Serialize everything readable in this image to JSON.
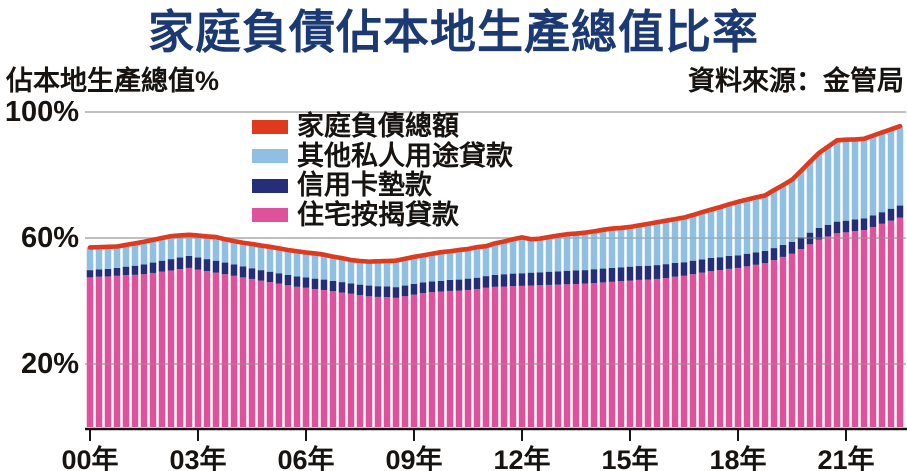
{
  "title": "家庭負債佔本地生產總值比率",
  "header": {
    "left_label": "佔本地生產總值%",
    "right_label": "資料來源：金管局"
  },
  "legend": [
    {
      "label": "家庭負債總額",
      "color": "#dd3a1e"
    },
    {
      "label": "其他私人用途貸款",
      "color": "#8fc0e4"
    },
    {
      "label": "信用卡墊款",
      "color": "#252f78"
    },
    {
      "label": "住宅按揭貸款",
      "color": "#e0519c"
    }
  ],
  "chart_data": {
    "type": "bar",
    "stacked": true,
    "title": "家庭負債佔本地生產總值比率",
    "ylabel": "佔本地生產總值%",
    "source": "資料來源：金管局",
    "x_start": "2000Q1",
    "x_frequency": "quarterly",
    "x_tick_labels": [
      "00年",
      "03年",
      "06年",
      "09年",
      "12年",
      "15年",
      "18年",
      "21年"
    ],
    "x_tick_interval_quarters": 12,
    "ylim": [
      0,
      100
    ],
    "y_axis_labels": [
      {
        "text": "100%",
        "value": 100
      },
      {
        "text": "60%",
        "value": 60
      },
      {
        "text": "20%",
        "value": 20
      }
    ],
    "grid": true,
    "legend_position": "top-center-inside",
    "series": [
      {
        "name": "住宅按揭貸款",
        "type": "bar",
        "color": "#e0519c",
        "values": [
          47.5,
          47.7,
          47.8,
          48.0,
          48.2,
          48.3,
          48.5,
          48.9,
          49.3,
          49.7,
          50.1,
          50.5,
          50.0,
          49.5,
          49.0,
          48.5,
          48.0,
          47.5,
          47.0,
          46.5,
          46.0,
          45.5,
          45.0,
          44.5,
          44.2,
          43.8,
          43.5,
          43.1,
          42.7,
          42.3,
          41.9,
          41.5,
          41.3,
          41.2,
          41.0,
          41.5,
          42.0,
          42.5,
          42.8,
          43.0,
          43.2,
          43.3,
          43.5,
          43.8,
          44.2,
          44.5,
          44.6,
          44.7,
          44.8,
          44.9,
          45.0,
          45.1,
          45.2,
          45.3,
          45.4,
          45.5,
          45.7,
          45.9,
          46.1,
          46.3,
          46.5,
          46.7,
          46.8,
          47.0,
          47.3,
          47.7,
          48.0,
          48.5,
          49.0,
          49.5,
          49.8,
          50.2,
          50.5,
          51.0,
          51.5,
          52.0,
          53.0,
          54.0,
          55.0,
          56.5,
          58.0,
          59.5,
          60.5,
          61.5,
          61.8,
          62.2,
          62.5,
          63.5,
          64.5,
          65.5,
          66.5
        ]
      },
      {
        "name": "信用卡墊款",
        "type": "bar",
        "color": "#252f78",
        "values": [
          2.3,
          2.3,
          2.4,
          2.5,
          2.7,
          2.9,
          3.1,
          3.3,
          3.5,
          3.6,
          3.7,
          3.8,
          3.8,
          3.8,
          3.8,
          3.7,
          3.6,
          3.5,
          3.4,
          3.3,
          3.3,
          3.3,
          3.3,
          3.3,
          3.3,
          3.3,
          3.3,
          3.3,
          3.3,
          3.3,
          3.3,
          3.4,
          3.4,
          3.4,
          3.4,
          3.4,
          3.4,
          3.4,
          3.4,
          3.4,
          3.5,
          3.5,
          3.6,
          3.6,
          3.7,
          3.8,
          3.9,
          4.0,
          4.0,
          4.1,
          4.1,
          4.2,
          4.2,
          4.3,
          4.3,
          4.3,
          4.4,
          4.4,
          4.4,
          4.4,
          4.4,
          4.4,
          4.4,
          4.4,
          4.4,
          4.4,
          4.3,
          4.3,
          4.2,
          4.2,
          4.1,
          4.1,
          4.0,
          4.0,
          3.9,
          3.9,
          3.8,
          3.8,
          3.8,
          3.7,
          3.7,
          3.7,
          3.7,
          3.7,
          3.7,
          3.7,
          3.7,
          3.7,
          3.7,
          3.8,
          3.8
        ]
      },
      {
        "name": "其他私人用途貸款",
        "type": "bar",
        "color": "#8fc0e4",
        "values": [
          7.2,
          7.1,
          7.0,
          6.8,
          6.9,
          7.1,
          7.2,
          7.2,
          7.2,
          7.3,
          7.0,
          6.7,
          7.0,
          7.2,
          7.5,
          7.4,
          7.4,
          7.5,
          7.7,
          7.8,
          7.9,
          7.9,
          7.9,
          8.0,
          7.9,
          8.0,
          7.9,
          7.7,
          7.6,
          7.4,
          7.5,
          7.6,
          7.9,
          8.1,
          8.4,
          8.5,
          8.6,
          8.6,
          8.8,
          9.1,
          9.1,
          9.4,
          9.4,
          9.7,
          9.5,
          10.0,
          10.4,
          10.9,
          11.4,
          10.6,
          10.7,
          11.0,
          11.4,
          11.6,
          11.7,
          11.9,
          12.0,
          12.3,
          12.5,
          12.5,
          12.6,
          12.9,
          13.3,
          13.6,
          13.8,
          13.9,
          14.2,
          14.5,
          15.0,
          15.3,
          15.9,
          16.4,
          17.0,
          17.2,
          17.5,
          17.6,
          18.4,
          19.0,
          19.7,
          21.1,
          22.5,
          23.8,
          24.8,
          25.8,
          25.7,
          25.4,
          25.3,
          25.3,
          25.3,
          25.2,
          25.2
        ]
      },
      {
        "name": "家庭負債總額",
        "type": "line",
        "color": "#dd3a1e",
        "values": [
          57.0,
          57.1,
          57.2,
          57.3,
          57.8,
          58.3,
          58.8,
          59.4,
          60.0,
          60.6,
          60.8,
          61.0,
          60.8,
          60.5,
          60.3,
          59.6,
          59.0,
          58.5,
          58.1,
          57.6,
          57.2,
          56.7,
          56.2,
          55.8,
          55.4,
          55.1,
          54.7,
          54.1,
          53.6,
          53.0,
          52.7,
          52.5,
          52.6,
          52.7,
          52.8,
          53.4,
          54.0,
          54.5,
          55.0,
          55.5,
          55.8,
          56.2,
          56.5,
          57.1,
          57.4,
          58.3,
          58.9,
          59.6,
          60.2,
          59.6,
          59.8,
          60.3,
          60.8,
          61.2,
          61.4,
          61.7,
          62.1,
          62.6,
          63.0,
          63.2,
          63.5,
          64.0,
          64.5,
          65.0,
          65.5,
          66.0,
          66.5,
          67.3,
          68.2,
          69.0,
          69.8,
          70.7,
          71.5,
          72.2,
          72.9,
          73.5,
          75.2,
          76.8,
          78.5,
          81.3,
          84.2,
          87.0,
          89.0,
          91.0,
          91.2,
          91.3,
          91.5,
          92.5,
          93.5,
          94.5,
          95.5
        ]
      }
    ]
  }
}
